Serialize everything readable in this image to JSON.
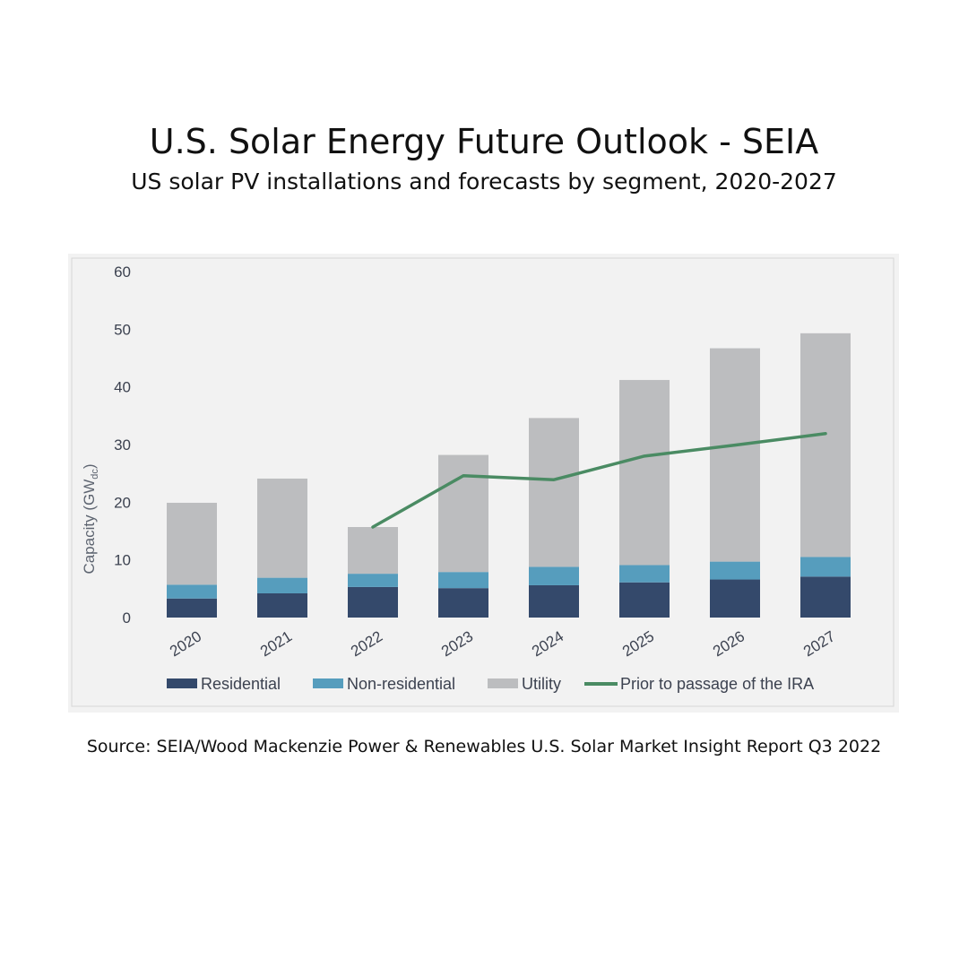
{
  "header": {
    "title": "U.S. Solar Energy Future Outlook - SEIA",
    "subtitle": "US solar PV installations and forecasts by segment, 2020-2027"
  },
  "footer": {
    "source": "Source: SEIA/Wood Mackenzie Power & Renewables U.S. Solar Market Insight Report Q3 2022"
  },
  "chart_data": {
    "type": "bar",
    "stacked": true,
    "categories": [
      "2020",
      "2021",
      "2022",
      "2023",
      "2024",
      "2025",
      "2026",
      "2027"
    ],
    "ylabel": "Capacity (GW",
    "ylabel_sub": "dc",
    "ylabel_close": ")",
    "ylim": [
      0,
      60
    ],
    "yticks": [
      0,
      10,
      20,
      30,
      40,
      50,
      60
    ],
    "grid": false,
    "legend_position": "bottom",
    "series": [
      {
        "name": "Residential",
        "color": "#34496b",
        "values": [
          3.3,
          4.2,
          5.3,
          5.1,
          5.6,
          6.1,
          6.6,
          7.1
        ]
      },
      {
        "name": "Non-residential",
        "color": "#569dbd",
        "values": [
          2.4,
          2.7,
          2.3,
          2.8,
          3.2,
          3.0,
          3.1,
          3.4
        ]
      },
      {
        "name": "Utility",
        "color": "#bcbdbf",
        "values": [
          14.2,
          17.2,
          8.1,
          20.3,
          25.8,
          32.1,
          37.0,
          38.8
        ]
      }
    ],
    "line_series": {
      "name": "Prior to passage of the IRA",
      "color": "#4a8b63",
      "start_index": 2,
      "values": [
        15.7,
        24.6,
        23.9,
        28.0,
        29.9,
        31.9
      ]
    }
  }
}
